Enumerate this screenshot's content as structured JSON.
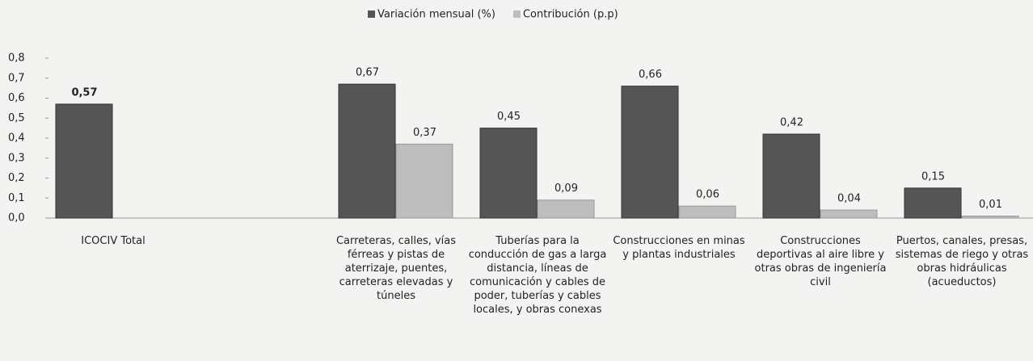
{
  "chart_data": {
    "type": "bar",
    "categories": [
      "ICOCIV Total",
      null,
      "Carreteras, calles, vías férreas y pistas de aterrizaje, puentes, carreteras elevadas y túneles",
      "Tuberías para la conducción de gas a larga distancia, líneas de comunicación y cables de poder, tuberías y cables locales, y obras conexas",
      "Construcciones en minas y plantas industriales",
      "Construcciones deportivas al aire libre y otras obras de ingeniería civil",
      "Puertos, canales, presas, sistemas de riego y otras obras hidráulicas (acueductos)"
    ],
    "series": [
      {
        "name": "Variación mensual (%)",
        "color": "#555555",
        "values": [
          0.57,
          null,
          0.67,
          0.45,
          0.66,
          0.42,
          0.15
        ],
        "value_labels": [
          "0,57",
          null,
          "0,67",
          "0,45",
          "0,66",
          "0,42",
          "0,15"
        ]
      },
      {
        "name": "Contribución (p.p)",
        "color": "#bdbdbd",
        "values": [
          null,
          null,
          0.37,
          0.09,
          0.06,
          0.04,
          0.01
        ],
        "value_labels": [
          null,
          null,
          "0,37",
          "0,09",
          "0,06",
          "0,04",
          "0,01"
        ]
      }
    ],
    "ylim": [
      0,
      0.8
    ],
    "yticks": [
      {
        "value": 0,
        "label": "0,0"
      },
      {
        "value": 0.1,
        "label": "0,1"
      },
      {
        "value": 0.2,
        "label": "0,2"
      },
      {
        "value": 0.3,
        "label": "0,3"
      },
      {
        "value": 0.4,
        "label": "0,4"
      },
      {
        "value": 0.5,
        "label": "0,5"
      },
      {
        "value": 0.6,
        "label": "0,6"
      },
      {
        "value": 0.7,
        "label": "0,7"
      },
      {
        "value": 0.8,
        "label": "0,8"
      }
    ],
    "legend": "top"
  }
}
